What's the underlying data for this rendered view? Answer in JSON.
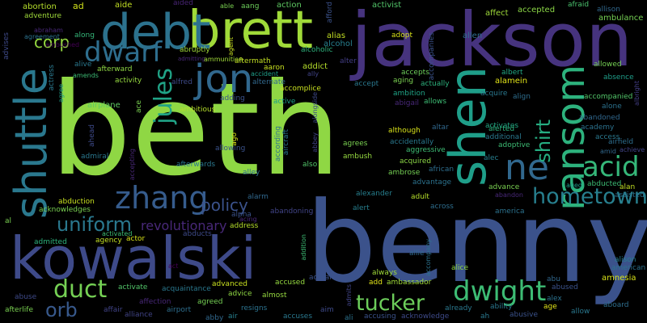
{
  "words": [
    {
      "text": "beth",
      "color": "#8fd744"
    },
    {
      "text": "benny",
      "color": "#3b528b"
    },
    {
      "text": "jackson",
      "color": "#46337e"
    },
    {
      "text": "brett",
      "color": "#a0da39"
    },
    {
      "text": "debt",
      "color": "#2c728e"
    },
    {
      "text": "kowalski",
      "color": "#3e4a89"
    },
    {
      "text": "shen",
      "color": "#1f9e89"
    },
    {
      "text": "shuttle",
      "color": "#2a788e"
    },
    {
      "text": "ransom",
      "color": "#2db27d"
    },
    {
      "text": "jon",
      "color": "#31688e"
    },
    {
      "text": "zhang",
      "color": "#365c8d"
    },
    {
      "text": "dwarf",
      "color": "#2e6e8e"
    },
    {
      "text": "ne",
      "color": "#31688e"
    },
    {
      "text": "acid",
      "color": "#35b779"
    },
    {
      "text": "hometown",
      "color": "#277f8e"
    },
    {
      "text": "dwight",
      "color": "#3dbc74"
    },
    {
      "text": "tucker",
      "color": "#6ccd5a"
    },
    {
      "text": "duct",
      "color": "#75d054"
    },
    {
      "text": "uniform",
      "color": "#2a788e"
    },
    {
      "text": "jules",
      "color": "#20a386"
    },
    {
      "text": "shirt",
      "color": "#26ad81"
    },
    {
      "text": "orb",
      "color": "#38598c"
    },
    {
      "text": "policy",
      "color": "#3b528b"
    },
    {
      "text": "revolutionary",
      "color": "#482878"
    },
    {
      "text": "corp",
      "color": "#95d840"
    },
    {
      "text": "abortion",
      "color": "#b5de2b"
    },
    {
      "text": "ad",
      "color": "#d2e21b"
    },
    {
      "text": "aide",
      "color": "#c2df23"
    },
    {
      "text": "aided",
      "color": "#482475"
    },
    {
      "text": "able",
      "color": "#7ad151"
    },
    {
      "text": "aang",
      "color": "#6ccd5a"
    },
    {
      "text": "action",
      "color": "#5ec962"
    },
    {
      "text": "afford",
      "color": "#3b528b"
    },
    {
      "text": "activist",
      "color": "#52c569"
    },
    {
      "text": "affect",
      "color": "#9fda3a"
    },
    {
      "text": "accepted",
      "color": "#8bd646"
    },
    {
      "text": "afraid",
      "color": "#4ac16d"
    },
    {
      "text": "allison",
      "color": "#31688e"
    },
    {
      "text": "ambulance",
      "color": "#75d054"
    },
    {
      "text": "adventure",
      "color": "#9fda3a"
    },
    {
      "text": "abraham",
      "color": "#482878"
    },
    {
      "text": "advises",
      "color": "#3e4a89"
    },
    {
      "text": "agreement",
      "color": "#2c728e"
    },
    {
      "text": "along",
      "color": "#35b779"
    },
    {
      "text": "ambushed",
      "color": "#440154"
    },
    {
      "text": "alive",
      "color": "#2a788e"
    },
    {
      "text": "abruptly",
      "color": "#a0da39"
    },
    {
      "text": "admitting",
      "color": "#482878"
    },
    {
      "text": "ammunition",
      "color": "#a0da39"
    },
    {
      "text": "agent",
      "color": "#c8e020"
    },
    {
      "text": "alcohol",
      "color": "#277f8e"
    },
    {
      "text": "alcoholic",
      "color": "#2db27d"
    },
    {
      "text": "alias",
      "color": "#c2df23"
    },
    {
      "text": "alter",
      "color": "#433e85"
    },
    {
      "text": "adopt",
      "color": "#d8e219"
    },
    {
      "text": "accompanies",
      "color": "#3b528b"
    },
    {
      "text": "allen",
      "color": "#2e6e8e"
    },
    {
      "text": "allowed",
      "color": "#75d054"
    },
    {
      "text": "absence",
      "color": "#1f9e89"
    },
    {
      "text": "actress",
      "color": "#2a788e"
    },
    {
      "text": "amends",
      "color": "#3dbc74"
    },
    {
      "text": "afterward",
      "color": "#8fd744"
    },
    {
      "text": "activity",
      "color": "#95d840"
    },
    {
      "text": "alfred",
      "color": "#3e4a89"
    },
    {
      "text": "aftermath",
      "color": "#c2df23"
    },
    {
      "text": "aaron",
      "color": "#c8e020"
    },
    {
      "text": "alternate",
      "color": "#31688e"
    },
    {
      "text": "accident",
      "color": "#1f9e89"
    },
    {
      "text": "addict",
      "color": "#b5de2b"
    },
    {
      "text": "ally",
      "color": "#414487"
    },
    {
      "text": "accept",
      "color": "#2a788e"
    },
    {
      "text": "aging",
      "color": "#7ad151"
    },
    {
      "text": "accepts",
      "color": "#6ccd5a"
    },
    {
      "text": "actually",
      "color": "#2db27d"
    },
    {
      "text": "alamein",
      "color": "#e2e418"
    },
    {
      "text": "albert",
      "color": "#22a884"
    },
    {
      "text": "agree",
      "color": "#1f9e89"
    },
    {
      "text": "airplane",
      "color": "#5ec962"
    },
    {
      "text": "ace",
      "color": "#7ad151"
    },
    {
      "text": "adding",
      "color": "#3b528b"
    },
    {
      "text": "ambitious",
      "color": "#b5de2b"
    },
    {
      "text": "active",
      "color": "#1fa088"
    },
    {
      "text": "accomplice",
      "color": "#c8e020"
    },
    {
      "text": "alongside",
      "color": "#3e4a89"
    },
    {
      "text": "ambition",
      "color": "#20a386"
    },
    {
      "text": "abigail",
      "color": "#482878"
    },
    {
      "text": "allows",
      "color": "#3dbc74"
    },
    {
      "text": "acquire",
      "color": "#2a788e"
    },
    {
      "text": "align",
      "color": "#2e6e8e"
    },
    {
      "text": "accompanied",
      "color": "#52c569"
    },
    {
      "text": "alone",
      "color": "#2c728e"
    },
    {
      "text": "albright",
      "color": "#433e85"
    },
    {
      "text": "abandoned",
      "color": "#31688e"
    },
    {
      "text": "academy",
      "color": "#2c728e"
    },
    {
      "text": "access",
      "color": "#2a788e"
    },
    {
      "text": "airfield",
      "color": "#2e6e8e"
    },
    {
      "text": "achieve",
      "color": "#414487"
    },
    {
      "text": "amid",
      "color": "#31688e"
    },
    {
      "text": "activates",
      "color": "#22a884"
    },
    {
      "text": "alerted",
      "color": "#2db27d"
    },
    {
      "text": "additional",
      "color": "#2a788e"
    },
    {
      "text": "adoptive",
      "color": "#3dbc74"
    },
    {
      "text": "ahead",
      "color": "#3e4a89"
    },
    {
      "text": "admiral",
      "color": "#2a788e"
    },
    {
      "text": "accepting",
      "color": "#482878"
    },
    {
      "text": "allowing",
      "color": "#3b528b"
    },
    {
      "text": "ago",
      "color": "#d8e219"
    },
    {
      "text": "according",
      "color": "#2c728e"
    },
    {
      "text": "aircraft",
      "color": "#2a788e"
    },
    {
      "text": "abbey",
      "color": "#414487"
    },
    {
      "text": "agrees",
      "color": "#7ad151"
    },
    {
      "text": "accidentally",
      "color": "#2a788e"
    },
    {
      "text": "aggressive",
      "color": "#3dbc74"
    },
    {
      "text": "although",
      "color": "#d8e219"
    },
    {
      "text": "altar",
      "color": "#31688e"
    },
    {
      "text": "ambush",
      "color": "#95d840"
    },
    {
      "text": "acquired",
      "color": "#8bd646"
    },
    {
      "text": "african",
      "color": "#2e6e8e"
    },
    {
      "text": "alec",
      "color": "#277f8e"
    },
    {
      "text": "advance",
      "color": "#7ad151"
    },
    {
      "text": "abandon",
      "color": "#482878"
    },
    {
      "text": "aged",
      "color": "#1f9e89"
    },
    {
      "text": "abducted",
      "color": "#3dbc74"
    },
    {
      "text": "alan",
      "color": "#c2df23"
    },
    {
      "text": "assisted",
      "color": "#2c728e"
    },
    {
      "text": "afterwards",
      "color": "#2a788e"
    },
    {
      "text": "alley",
      "color": "#2e6e8e"
    },
    {
      "text": "also",
      "color": "#52c569"
    },
    {
      "text": "ambrose",
      "color": "#75d054"
    },
    {
      "text": "advantage",
      "color": "#2c728e"
    },
    {
      "text": "adult",
      "color": "#b5de2b"
    },
    {
      "text": "alexander",
      "color": "#277f8e"
    },
    {
      "text": "abduction",
      "color": "#c8e020"
    },
    {
      "text": "acknowledges",
      "color": "#7ad151"
    },
    {
      "text": "alarm",
      "color": "#31688e"
    },
    {
      "text": "alpha",
      "color": "#3b528b"
    },
    {
      "text": "acing",
      "color": "#482878"
    },
    {
      "text": "abandoning",
      "color": "#414487"
    },
    {
      "text": "alert",
      "color": "#277f8e"
    },
    {
      "text": "across",
      "color": "#2e6e8e"
    },
    {
      "text": "america",
      "color": "#2c728e"
    },
    {
      "text": "al",
      "color": "#7ad151"
    },
    {
      "text": "abducts",
      "color": "#3e4a89"
    },
    {
      "text": "address",
      "color": "#b5de2b"
    },
    {
      "text": "admitted",
      "color": "#2db27d"
    },
    {
      "text": "agency",
      "color": "#c2df23"
    },
    {
      "text": "actor",
      "color": "#d8e219"
    },
    {
      "text": "activated",
      "color": "#3dbc74"
    },
    {
      "text": "addition",
      "color": "#3dbc74"
    },
    {
      "text": "accompany",
      "color": "#2c728e"
    },
    {
      "text": "allie",
      "color": "#31688e"
    },
    {
      "text": "alice",
      "color": "#8fd744"
    },
    {
      "text": "alison",
      "color": "#277f8e"
    },
    {
      "text": "american",
      "color": "#2c728e"
    },
    {
      "text": "act",
      "color": "#440154"
    },
    {
      "text": "amnesia",
      "color": "#d8e219"
    },
    {
      "text": "activate",
      "color": "#52c569"
    },
    {
      "text": "acquaintance",
      "color": "#2a788e"
    },
    {
      "text": "advanced",
      "color": "#c8e020"
    },
    {
      "text": "accused",
      "color": "#95d840"
    },
    {
      "text": "actual",
      "color": "#3b528b"
    },
    {
      "text": "always",
      "color": "#a0da39"
    },
    {
      "text": "add",
      "color": "#e2e418"
    },
    {
      "text": "ambassador",
      "color": "#a0da39"
    },
    {
      "text": "abu",
      "color": "#31688e"
    },
    {
      "text": "abused",
      "color": "#3b528b"
    },
    {
      "text": "advice",
      "color": "#8fd744"
    },
    {
      "text": "almost",
      "color": "#95d840"
    },
    {
      "text": "affection",
      "color": "#482878"
    },
    {
      "text": "agreed",
      "color": "#75d054"
    },
    {
      "text": "abuse",
      "color": "#3e4a89"
    },
    {
      "text": "admits",
      "color": "#414487"
    },
    {
      "text": "alex",
      "color": "#2c728e"
    },
    {
      "text": "aboard",
      "color": "#2e6e8e"
    },
    {
      "text": "afterlife",
      "color": "#7ad151"
    },
    {
      "text": "affair",
      "color": "#414487"
    },
    {
      "text": "airport",
      "color": "#2e6e8e"
    },
    {
      "text": "alliance",
      "color": "#414487"
    },
    {
      "text": "abby",
      "color": "#31688e"
    },
    {
      "text": "air",
      "color": "#277f8e"
    },
    {
      "text": "resigns",
      "color": "#2c728e"
    },
    {
      "text": "accuses",
      "color": "#2a788e"
    },
    {
      "text": "aim",
      "color": "#3e4a89"
    },
    {
      "text": "ali",
      "color": "#2c728e"
    },
    {
      "text": "accusing",
      "color": "#3b528b"
    },
    {
      "text": "acknowledge",
      "color": "#3e4a89"
    },
    {
      "text": "already",
      "color": "#2a788e"
    },
    {
      "text": "ah",
      "color": "#2a788e"
    },
    {
      "text": "ability",
      "color": "#2a788e"
    },
    {
      "text": "abusive",
      "color": "#3b528b"
    },
    {
      "text": "age",
      "color": "#e2e418"
    },
    {
      "text": "allow",
      "color": "#2a788e"
    }
  ]
}
